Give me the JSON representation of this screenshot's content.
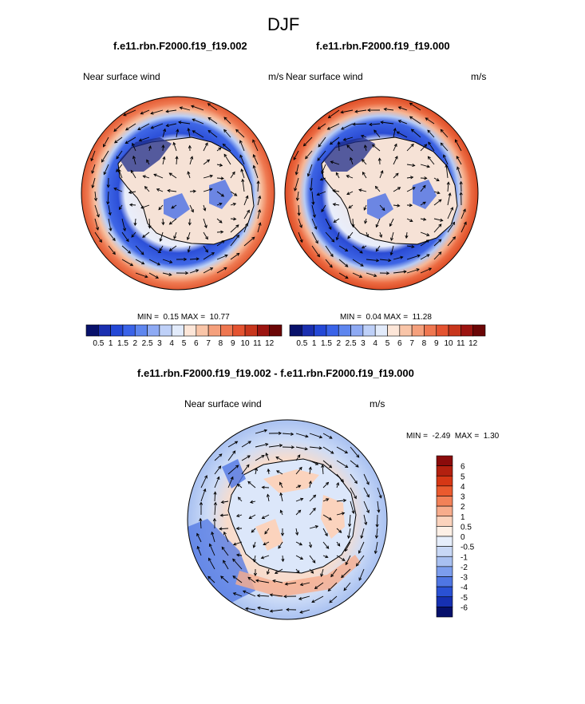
{
  "title": "DJF",
  "panels": [
    {
      "case_title": "f.e11.rbn.F2000.f19_f19.002",
      "left_label": "Near surface wind",
      "right_label": "m/s",
      "min_label": "MIN =",
      "min_value": "0.15",
      "max_label": "MAX =",
      "max_value": "10.77"
    },
    {
      "case_title": "f.e11.rbn.F2000.f19_f19.000",
      "left_label": "Near surface wind",
      "right_label": "m/s",
      "min_label": "MIN =",
      "min_value": "0.04",
      "max_label": "MAX =",
      "max_value": "11.28"
    }
  ],
  "diff_panel": {
    "case_title": "f.e11.rbn.F2000.f19_f19.002 - f.e11.rbn.F2000.f19_f19.000",
    "left_label": "Near surface wind",
    "right_label": "m/s",
    "min_label": "MIN =",
    "min_value": "-2.49",
    "max_label": "MAX =",
    "max_value": "1.30"
  },
  "colorbar_abs": {
    "labels": [
      "0.5",
      "1",
      "1.5",
      "2",
      "2.5",
      "3",
      "4",
      "5",
      "6",
      "7",
      "8",
      "9",
      "10",
      "11",
      "12"
    ],
    "colors": [
      "#08116b",
      "#1a2fb0",
      "#2448d6",
      "#3a63e8",
      "#5e86ef",
      "#8eaaf4",
      "#bed0f8",
      "#e2ebfb",
      "#fde6d8",
      "#f9c5a8",
      "#f5a07c",
      "#ef7750",
      "#e45330",
      "#c8361c",
      "#9c1410",
      "#6b0606"
    ]
  },
  "colorbar_diff": {
    "labels": [
      "6",
      "5",
      "4",
      "3",
      "2",
      "1",
      "0.5",
      "0",
      "-0.5",
      "-1",
      "-2",
      "-3",
      "-4",
      "-5",
      "-6"
    ],
    "colors": [
      "#8b0b0b",
      "#b3200f",
      "#d63715",
      "#ea5a2e",
      "#f28158",
      "#f7ac8c",
      "#fbd3bd",
      "#fdf0e6",
      "#e6eefb",
      "#c8d8f6",
      "#a8c0f1",
      "#7c9ded",
      "#4f76e3",
      "#2a51d4",
      "#1630b2",
      "#06106b"
    ]
  }
}
